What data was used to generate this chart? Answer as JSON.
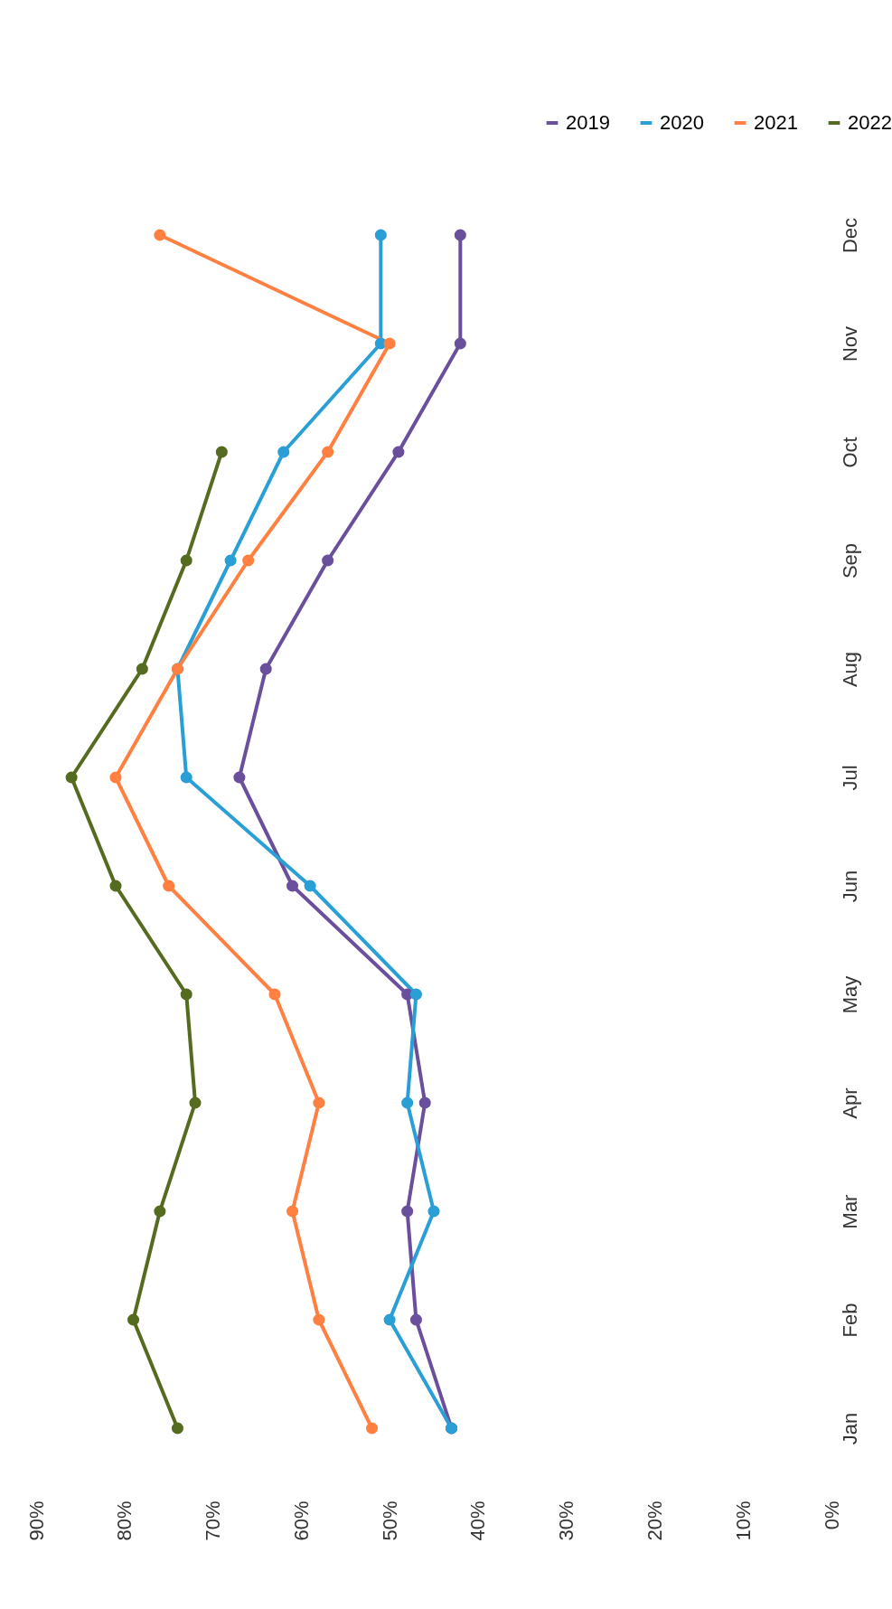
{
  "chart_data": {
    "type": "line",
    "orientation": "horizontal",
    "categories": [
      "Dec",
      "Nov",
      "Oct",
      "Sep",
      "Aug",
      "Jul",
      "Jun",
      "May",
      "Apr",
      "Mar",
      "Feb",
      "Jan"
    ],
    "xlim": [
      90,
      0
    ],
    "xticks": [
      {
        "value": 90,
        "label": "90%"
      },
      {
        "value": 80,
        "label": "80%"
      },
      {
        "value": 70,
        "label": "70%"
      },
      {
        "value": 60,
        "label": "60%"
      },
      {
        "value": 50,
        "label": "50%"
      },
      {
        "value": 40,
        "label": "40%"
      },
      {
        "value": 30,
        "label": "30%"
      },
      {
        "value": 20,
        "label": "20%"
      },
      {
        "value": 10,
        "label": "10%"
      },
      {
        "value": 0,
        "label": "0%"
      }
    ],
    "series": [
      {
        "name": "2019",
        "color": "#6a4f9c",
        "values": [
          42,
          42,
          49,
          57,
          64,
          67,
          61,
          48,
          46,
          48,
          47,
          43
        ]
      },
      {
        "name": "2020",
        "color": "#2a9fd6",
        "values": [
          51,
          51,
          62,
          68,
          74,
          73,
          59,
          47,
          48,
          45,
          50,
          43
        ]
      },
      {
        "name": "2021",
        "color": "#ff8040",
        "values": [
          76,
          50,
          57,
          66,
          74,
          81,
          75,
          63,
          58,
          61,
          58,
          52
        ]
      },
      {
        "name": "2022",
        "color": "#556b1f",
        "values": [
          null,
          null,
          69,
          73,
          78,
          86,
          81,
          73,
          72,
          76,
          79,
          74
        ]
      }
    ],
    "marker": "circle",
    "line_style": "solid",
    "grid": false,
    "legend": "top right"
  }
}
